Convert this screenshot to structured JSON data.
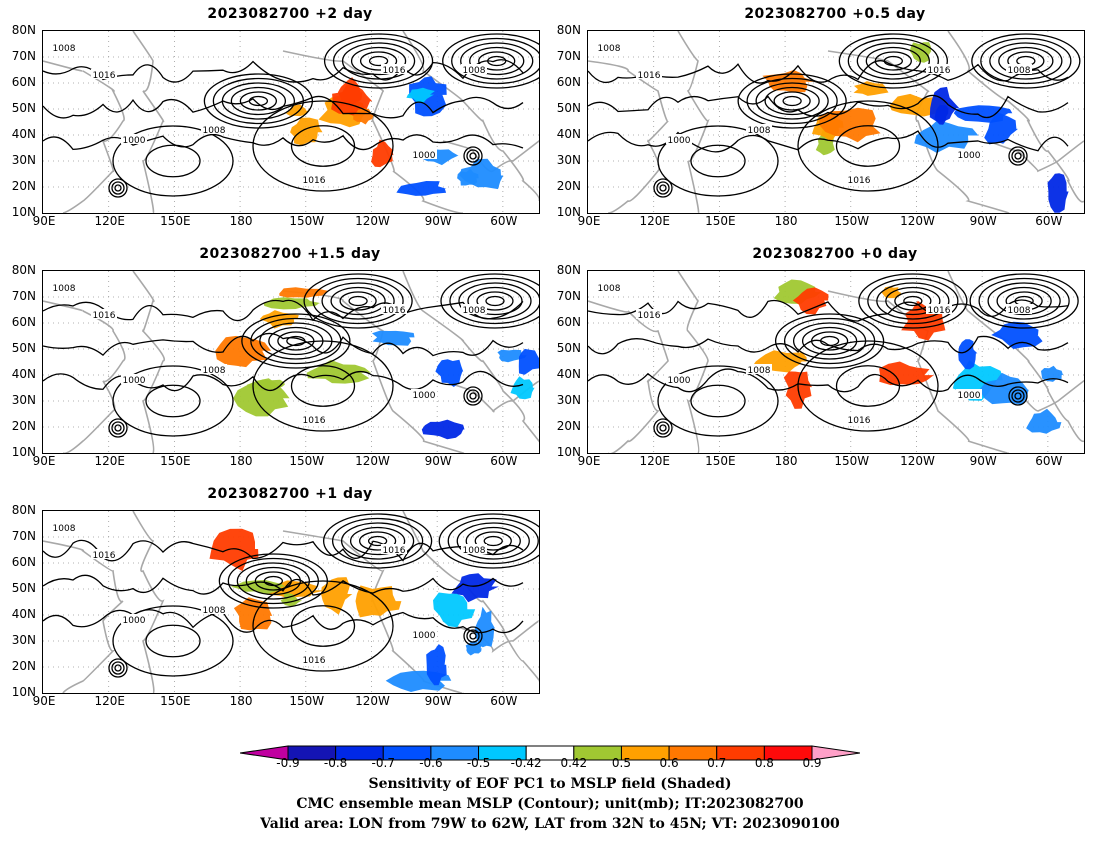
{
  "panels": [
    {
      "title": "2023082700 +2 day"
    },
    {
      "title": "2023082700 +0.5 day"
    },
    {
      "title": "2023082700 +1.5 day"
    },
    {
      "title": "2023082700 +0 day"
    },
    {
      "title": "2023082700 +1 day"
    }
  ],
  "lat_labels": [
    "80N",
    "70N",
    "60N",
    "50N",
    "40N",
    "30N",
    "20N",
    "10N"
  ],
  "lon_labels": [
    "90E",
    "120E",
    "150E",
    "180",
    "150W",
    "120W",
    "90W",
    "60W"
  ],
  "contour_labels": [
    "1008",
    "1016",
    "1000"
  ],
  "colorbar": {
    "ticks": [
      "-0.9",
      "-0.8",
      "-0.7",
      "-0.6",
      "-0.5",
      "-0.42",
      "0.42",
      "0.5",
      "0.6",
      "0.7",
      "0.8",
      "0.9"
    ],
    "colors": [
      "#c000a0",
      "#1414b4",
      "#0028e6",
      "#0050ff",
      "#1e8cff",
      "#00c8ff",
      "#ffffff",
      "#a0c832",
      "#ffa000",
      "#ff7800",
      "#ff3c00",
      "#ff0a0a",
      "#ffa0c8"
    ]
  },
  "caption": {
    "line1": "Sensitivity of EOF PC1 to MSLP field (Shaded)",
    "line2": "CMC ensemble mean MSLP (Contour); unit(mb); IT:2023082700",
    "line3": "Valid area: LON from 79W to 62W, LAT from 32N to 45N; VT: 2023090100"
  }
}
